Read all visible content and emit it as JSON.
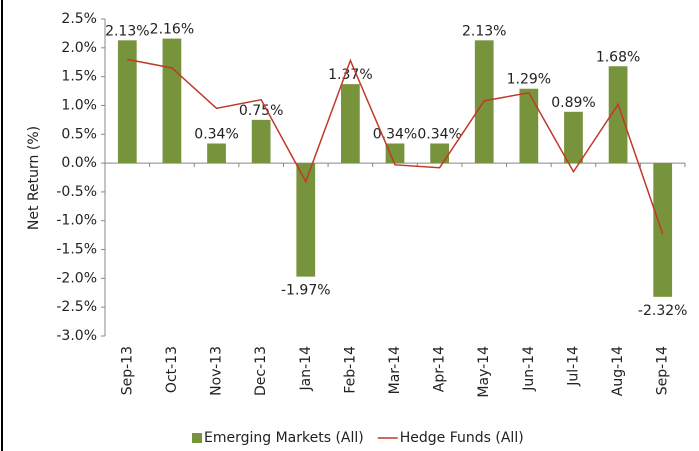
{
  "chart_data": {
    "type": "bar",
    "y_label": "Net Return (%)",
    "categories": [
      "Sep-13",
      "Oct-13",
      "Nov-13",
      "Dec-13",
      "Jan-14",
      "Feb-14",
      "Mar-14",
      "Apr-14",
      "May-14",
      "Jun-14",
      "Jul-14",
      "Aug-14",
      "Sep-14"
    ],
    "series": [
      {
        "name": "Emerging Markets (All)",
        "type": "bar",
        "color": "#77933c",
        "values": [
          2.13,
          2.16,
          0.34,
          0.75,
          -1.97,
          1.37,
          0.34,
          0.34,
          2.13,
          1.29,
          0.89,
          1.68,
          -2.32
        ],
        "value_labels": [
          "2.13%",
          "2.16%",
          "0.34%",
          "0.75%",
          "-1.97%",
          "1.37%",
          "0.34%",
          "0.34%",
          "2.13%",
          "1.29%",
          "0.89%",
          "1.68%",
          "-2.32%"
        ]
      },
      {
        "name": "Hedge Funds (All)",
        "type": "line",
        "color": "#c0392b",
        "values": [
          1.8,
          1.65,
          0.95,
          1.1,
          -0.32,
          1.78,
          -0.03,
          -0.08,
          1.08,
          1.22,
          -0.15,
          1.02,
          -1.23
        ]
      }
    ],
    "ylim": [
      -3.0,
      2.5
    ],
    "yticks": [
      {
        "value": 2.5,
        "label": "2.5%"
      },
      {
        "value": 2.0,
        "label": "2.0%"
      },
      {
        "value": 1.5,
        "label": "1.5%"
      },
      {
        "value": 1.0,
        "label": "1.0%"
      },
      {
        "value": 0.5,
        "label": "0.5%"
      },
      {
        "value": 0.0,
        "label": "0.0%"
      },
      {
        "value": -0.5,
        "label": "-0.5%"
      },
      {
        "value": -1.0,
        "label": "-1.0%"
      },
      {
        "value": -1.5,
        "label": "-1.5%"
      },
      {
        "value": -2.0,
        "label": "-2.0%"
      },
      {
        "value": -2.5,
        "label": "-2.5%"
      },
      {
        "value": -3.0,
        "label": "-3.0%"
      }
    ],
    "grid": false,
    "legend": "bottom"
  }
}
